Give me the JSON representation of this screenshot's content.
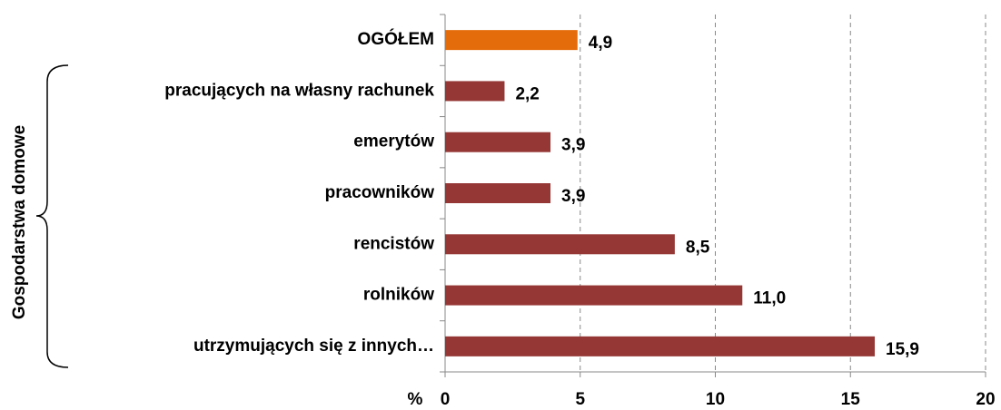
{
  "chart_data": {
    "type": "barh",
    "categories": [
      "OGÓŁEM",
      "pracujących na własny rachunek",
      "emerytów",
      "pracowników",
      "rencistów",
      "rolników",
      "utrzymujących się z innych…"
    ],
    "values": [
      4.9,
      2.2,
      3.9,
      3.9,
      8.5,
      11.0,
      15.9
    ],
    "value_labels": [
      "4,9",
      "2,2",
      "3,9",
      "3,9",
      "8,5",
      "11,0",
      "15,9"
    ],
    "colors": [
      "#e46c0a",
      "#953735",
      "#953735",
      "#953735",
      "#953735",
      "#953735",
      "#953735"
    ],
    "xlim": [
      0,
      20
    ],
    "xticks": [
      0,
      5,
      10,
      15,
      20
    ],
    "grid": true,
    "x_label": "%",
    "group_label": "Gospodarstwa domowe"
  }
}
